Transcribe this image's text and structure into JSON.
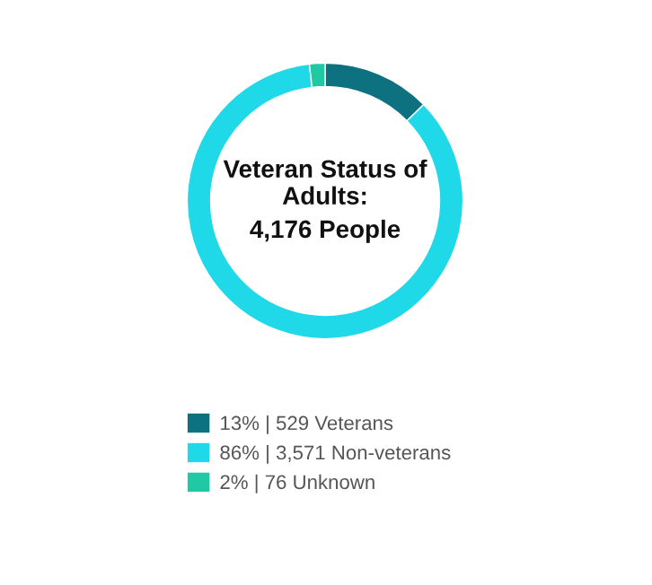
{
  "chart_data": {
    "type": "donut",
    "title": "Veteran Status of Adults:",
    "subtitle": "4,176 People",
    "categories": [
      "13% | 529 Veterans",
      "86% | 3,571 Non-veterans",
      "2% | 76 Unknown"
    ],
    "values": [
      529,
      3571,
      76
    ],
    "colors": [
      "#0e7180",
      "#1fd8e8",
      "#1ec9a3"
    ],
    "legend": "bottom"
  }
}
